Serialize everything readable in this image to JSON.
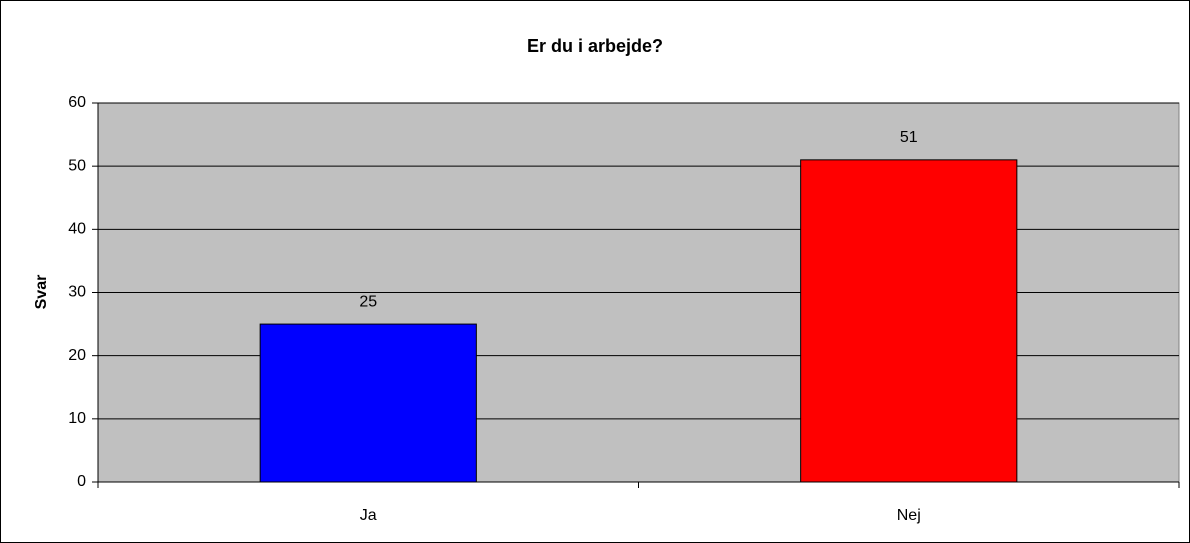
{
  "chart_data": {
    "type": "bar",
    "title": "Er du i arbejde?",
    "ylabel": "Svar",
    "categories": [
      "Ja",
      "Nej"
    ],
    "values": [
      25,
      51
    ],
    "colors": [
      "#0000ff",
      "#ff0000"
    ],
    "ylim": [
      0,
      60
    ],
    "yticks": [
      0,
      10,
      20,
      30,
      40,
      50,
      60
    ],
    "grid": true
  }
}
